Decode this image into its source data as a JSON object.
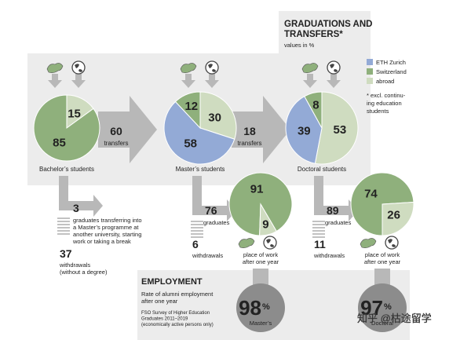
{
  "header": {
    "title_lines": [
      "GRADUATIONS AND",
      "TRANSFERS*"
    ],
    "subtitle": "values in %"
  },
  "legend": {
    "items": [
      {
        "name": "ETH Zurich",
        "color": "#93aad6"
      },
      {
        "name": "Switzerland",
        "color": "#8fb07c"
      },
      {
        "name": "abroad",
        "color": "#cfdcc0"
      }
    ],
    "note_lines": [
      "* excl. continu-",
      "ing education",
      "students"
    ]
  },
  "stages": [
    {
      "label": "Bachelor’s students",
      "pie": [
        {
          "value": 15,
          "color": "#cfdcc0"
        },
        {
          "value": 85,
          "color": "#8fb07c"
        }
      ],
      "graduates": {
        "value": 3,
        "lines": [
          "graduates transferring into",
          "a Master’s programme at",
          "another university, starting",
          "work or taking a break"
        ]
      },
      "withdrawals": {
        "value": 37,
        "lines": [
          "withdrawals",
          "(without a degree)"
        ]
      }
    },
    {
      "label": "Master’s students",
      "pie": [
        {
          "value": 30,
          "color": "#cfdcc0"
        },
        {
          "value": 58,
          "color": "#93aad6"
        },
        {
          "value": 12,
          "color": "#8fb07c"
        }
      ],
      "graduates": {
        "value": 76,
        "lines": [
          "graduates"
        ]
      },
      "withdrawals": {
        "value": 6,
        "lines": [
          "withdrawals"
        ]
      },
      "work": {
        "pie": [
          {
            "value": 91,
            "color": "#8fb07c"
          },
          {
            "value": 9,
            "color": "#cfdcc0"
          }
        ],
        "lines": [
          "place of work",
          "after one year"
        ]
      }
    },
    {
      "label": "Doctoral students",
      "pie": [
        {
          "value": 53,
          "color": "#cfdcc0"
        },
        {
          "value": 39,
          "color": "#93aad6"
        },
        {
          "value": 8,
          "color": "#8fb07c"
        }
      ],
      "graduates": {
        "value": 89,
        "lines": [
          "graduates"
        ]
      },
      "withdrawals": {
        "value": 11,
        "lines": [
          "withdrawals"
        ]
      },
      "work": {
        "pie": [
          {
            "value": 74,
            "color": "#8fb07c"
          },
          {
            "value": 26,
            "color": "#cfdcc0"
          }
        ],
        "lines": [
          "place of work",
          "after one year"
        ]
      }
    }
  ],
  "transfers": [
    {
      "value": 60,
      "label": "transfers"
    },
    {
      "value": 18,
      "label": "transfers"
    }
  ],
  "employment": {
    "title": "EMPLOYMENT",
    "lines": [
      "Rate of alumni employment",
      "after one year"
    ],
    "source_lines": [
      "FSO Survey of Higher Education",
      "Graduates 2011–2019",
      "(economically active persons only)"
    ],
    "rates": [
      {
        "value": 98,
        "unit": "%",
        "label": "Master’s"
      },
      {
        "value": 97,
        "unit": "%",
        "label": "Doctoral"
      }
    ]
  },
  "watermark": "知乎 @枯途留学"
}
